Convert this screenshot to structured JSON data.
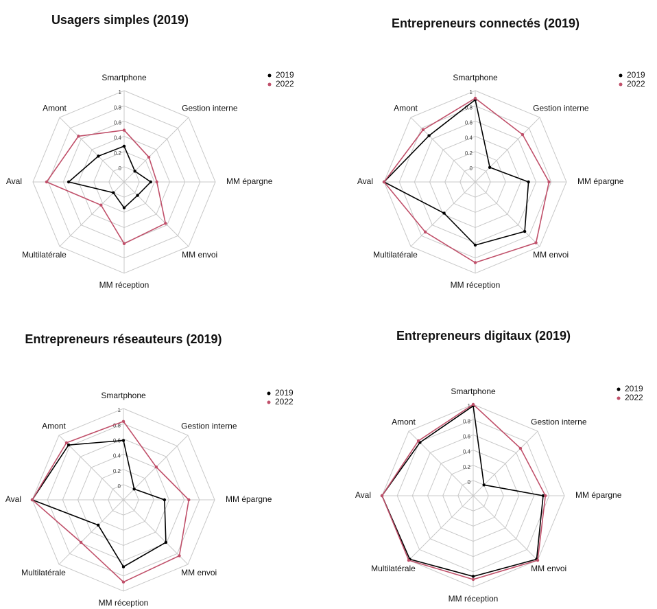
{
  "chart_data": [
    {
      "type": "radar",
      "title": "Usagers simples (2019)",
      "categories": [
        "Smartphone",
        "Gestion interne",
        "MM épargne",
        "MM envoi",
        "MM réception",
        "Multilatérale",
        "Aval",
        "Amont"
      ],
      "series": [
        {
          "name": "2019",
          "color": "#000000",
          "values": [
            0.27,
            0.0,
            0.15,
            0.05,
            0.14,
            0.0,
            0.53,
            0.28
          ]
        },
        {
          "name": "2022",
          "color": "#c0506a",
          "values": [
            0.48,
            0.26,
            0.23,
            0.57,
            0.61,
            0.23,
            0.82,
            0.65
          ]
        }
      ],
      "ylim": [
        -0.2,
        1
      ],
      "yticks": [
        0,
        0.2,
        0.4,
        0.6,
        0.8,
        1
      ],
      "legend": "top-right"
    },
    {
      "type": "radar",
      "title": "Entrepreneurs connectés (2019)",
      "categories": [
        "Smartphone",
        "Gestion interne",
        "MM épargne",
        "MM envoi",
        "MM réception",
        "Multilatérale",
        "Aval",
        "Amont"
      ],
      "series": [
        {
          "name": "2019",
          "color": "#000000",
          "values": [
            0.88,
            0.07,
            0.5,
            0.72,
            0.63,
            0.38,
            1,
            0.66
          ]
        },
        {
          "name": "2022",
          "color": "#c0506a",
          "values": [
            0.9,
            0.68,
            0.77,
            0.93,
            0.86,
            0.73,
            1,
            0.77
          ]
        }
      ],
      "ylim": [
        -0.2,
        1
      ],
      "yticks": [
        0,
        0.2,
        0.4,
        0.6,
        0.8,
        1
      ],
      "legend": "top-right"
    },
    {
      "type": "radar",
      "title": "Entrepreneurs réseauteurs (2019)",
      "categories": [
        "Smartphone",
        "Gestion interne",
        "MM épargne",
        "MM envoi",
        "MM réception",
        "Multilatérale",
        "Aval",
        "Amont"
      ],
      "series": [
        {
          "name": "2019",
          "color": "#000000",
          "values": [
            0.58,
            0.0,
            0.34,
            0.59,
            0.68,
            0.27,
            1,
            0.82
          ]
        },
        {
          "name": "2022",
          "color": "#c0506a",
          "values": [
            0.83,
            0.41,
            0.66,
            0.84,
            0.88,
            0.59,
            1,
            0.86
          ]
        }
      ],
      "ylim": [
        -0.2,
        1
      ],
      "yticks": [
        0,
        0.2,
        0.4,
        0.6,
        0.8,
        1
      ],
      "legend": "top-right"
    },
    {
      "type": "radar",
      "title": "Entrepreneurs digitaux (2019)",
      "categories": [
        "Smartphone",
        "Gestion interne",
        "MM épargne",
        "MM envoi",
        "MM réception",
        "Multilatérale",
        "Aval",
        "Amont"
      ],
      "series": [
        {
          "name": "2019",
          "color": "#000000",
          "values": [
            0.98,
            0.0,
            0.72,
            0.98,
            0.86,
            0.98,
            1,
            0.79
          ]
        },
        {
          "name": "2022",
          "color": "#c0506a",
          "values": [
            1,
            0.68,
            0.75,
            1,
            0.9,
            1,
            1,
            0.82
          ]
        }
      ],
      "ylim": [
        -0.2,
        1
      ],
      "yticks": [
        0,
        0.2,
        0.4,
        0.6,
        0.8,
        1
      ],
      "legend": "top-right"
    }
  ]
}
